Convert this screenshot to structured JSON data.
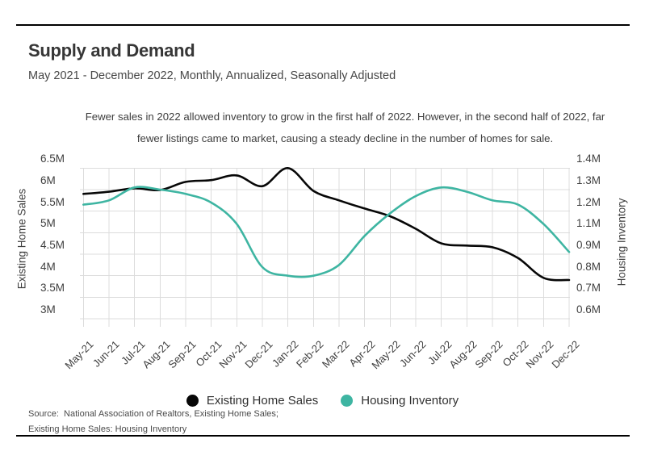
{
  "header": {
    "title": "Supply and Demand",
    "subtitle": "May 2021 - December 2022, Monthly, Annualized, Seasonally Adjusted"
  },
  "description": {
    "line1": "Fewer sales in 2022 allowed inventory to grow in the first half of 2022. However, in the second half of 2022, far",
    "line2": "fewer listings came to market, causing a steady decline in the number of homes for sale."
  },
  "legend": {
    "items": [
      {
        "label": "Existing Home Sales",
        "color": "#070707"
      },
      {
        "label": "Housing Inventory",
        "color": "#3eb5a2"
      }
    ]
  },
  "source": {
    "line1": "Source:  National Association of Realtors, Existing Home Sales;",
    "line2": "Existing Home Sales: Housing Inventory"
  },
  "colors": {
    "sales_line": "#070707",
    "inventory_line": "#3eb5a2",
    "gridline": "#dcdcdc",
    "rule": "#000000"
  },
  "chart_data": {
    "type": "line",
    "title": "Supply and Demand",
    "subtitle": "May 2021 - December 2022, Monthly, Annualized, Seasonally Adjusted",
    "x_categories": [
      "May-21",
      "Jun-21",
      "Jul-21",
      "Aug-21",
      "Sep-21",
      "Oct-21",
      "Nov-21",
      "Dec-21",
      "Jan-22",
      "Feb-22",
      "Mar-22",
      "Apr-22",
      "May-22",
      "Jun-22",
      "Jul-22",
      "Aug-22",
      "Sep-22",
      "Oct-22",
      "Nov-22",
      "Dec-22"
    ],
    "series": [
      {
        "name": "Existing Home Sales",
        "axis": "left",
        "unit": "millions",
        "color": "#070707",
        "values": [
          5.9,
          5.95,
          6.03,
          5.99,
          6.18,
          6.22,
          6.33,
          6.08,
          6.5,
          5.97,
          5.75,
          5.56,
          5.38,
          5.09,
          4.75,
          4.7,
          4.66,
          4.41,
          3.95,
          3.9
        ]
      },
      {
        "name": "Housing Inventory",
        "axis": "right",
        "unit": "millions",
        "color": "#3eb5a2",
        "values": [
          1.23,
          1.25,
          1.31,
          1.3,
          1.28,
          1.24,
          1.14,
          0.84,
          0.8,
          0.8,
          0.85,
          1.07,
          1.19,
          1.27,
          1.31,
          1.29,
          1.25,
          1.23,
          1.14,
          0.92
        ]
      }
    ],
    "left_axis": {
      "label": "Existing Home Sales",
      "tick_labels": [
        "6.5M",
        "6M",
        "5.5M",
        "5M",
        "4.5M",
        "4M",
        "3.5M",
        "3M"
      ],
      "tick_values": [
        6.5,
        6.0,
        5.5,
        5.0,
        4.5,
        4.0,
        3.5,
        3.0
      ],
      "range": [
        3.0,
        6.5
      ]
    },
    "right_axis": {
      "label": "Housing Inventory",
      "tick_labels": [
        "1.4M",
        "1.3M",
        "1.2M",
        "1.1M",
        "0.9M",
        "0.8M",
        "0.7M",
        "0.6M"
      ],
      "tick_values": [
        1.4,
        1.3,
        1.2,
        1.1,
        0.9,
        0.8,
        0.7,
        0.6
      ]
    },
    "grid": true,
    "legend_position": "bottom"
  }
}
